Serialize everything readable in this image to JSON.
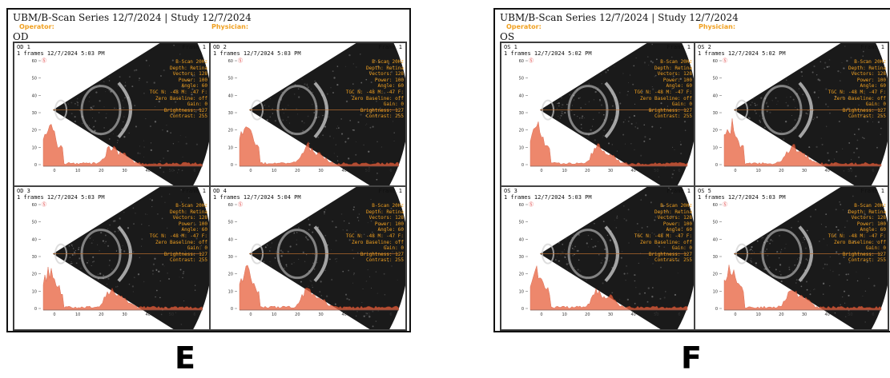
{
  "figures": [
    {
      "letter": "E",
      "title": "UBM/B-Scan Series 12/7/2024 | Study 12/7/2024",
      "operator_label": "Operator:",
      "physician_label": "Physician:",
      "eye": "OD",
      "panels": [
        {
          "id": "OD  1",
          "frame": "Frame 1",
          "timestamp": "1 frames 12/7/2024 5:03 PM"
        },
        {
          "id": "OD  2",
          "frame": "Frame 1",
          "timestamp": "1 frames 12/7/2024 5:03 PM"
        },
        {
          "id": "OD  3",
          "frame": "Frame 1",
          "timestamp": "1 frames 12/7/2024 5:03 PM"
        },
        {
          "id": "OD  4",
          "frame": "Frame 1",
          "timestamp": "1 frames 12/7/2024 5:04 PM"
        }
      ]
    },
    {
      "letter": "F",
      "title": "UBM/B-Scan Series 12/7/2024 | Study 12/7/2024",
      "operator_label": "Operator:",
      "physician_label": "Physician:",
      "eye": "OS",
      "panels": [
        {
          "id": "OS  1",
          "frame": "Frame 1",
          "timestamp": "1 frames 12/7/2024 5:02 PM"
        },
        {
          "id": "OS  2",
          "frame": "Frame 1",
          "timestamp": "1 frames 12/7/2024 5:02 PM"
        },
        {
          "id": "OS  3",
          "frame": "Frame 1",
          "timestamp": "1 frames 12/7/2024 5:03 PM"
        },
        {
          "id": "OS  5",
          "frame": "Frame 1",
          "timestamp": "1 frames 12/7/2024 5:03 PM"
        }
      ]
    }
  ],
  "scan_params": [
    "B-Scan 20Hz",
    "Depth: Retina",
    "Vectors: 128",
    "Power: 100",
    "Angle: 60",
    "TGC N: -48 M: -47 F:",
    "Zero Baseline: off",
    "Gain: 0",
    "Brightness: 127",
    "Contrast: 255"
  ],
  "axis_ticks": [
    "0",
    "10",
    "20",
    "30",
    "40",
    "50",
    "6"
  ],
  "y_ticks": [
    "60",
    "50",
    "40",
    "30",
    "20",
    "10",
    "0"
  ],
  "colors": {
    "params": "#f0a020",
    "profile": "#e8603c",
    "scan_bg": "#1a1a1a"
  }
}
